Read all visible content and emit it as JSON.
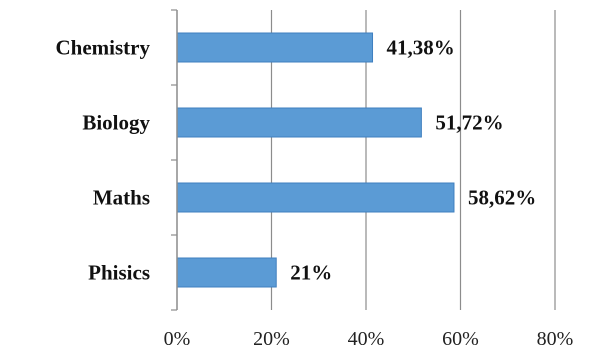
{
  "chart_data": {
    "type": "bar",
    "orientation": "horizontal",
    "categories": [
      "Chemistry",
      "Biology",
      "Maths",
      "Phisics"
    ],
    "values": [
      41.38,
      51.72,
      58.62,
      21
    ],
    "data_labels": [
      "41,38%",
      "51,72%",
      "58,62%",
      "21%"
    ],
    "x_ticks": [
      "0%",
      "20%",
      "40%",
      "60%",
      "80%"
    ],
    "xlim": [
      0,
      80
    ],
    "grid": "vertical",
    "legend": "none",
    "bar_color": "#5b9bd5",
    "bar_edge_color": "#3f7fbf"
  }
}
